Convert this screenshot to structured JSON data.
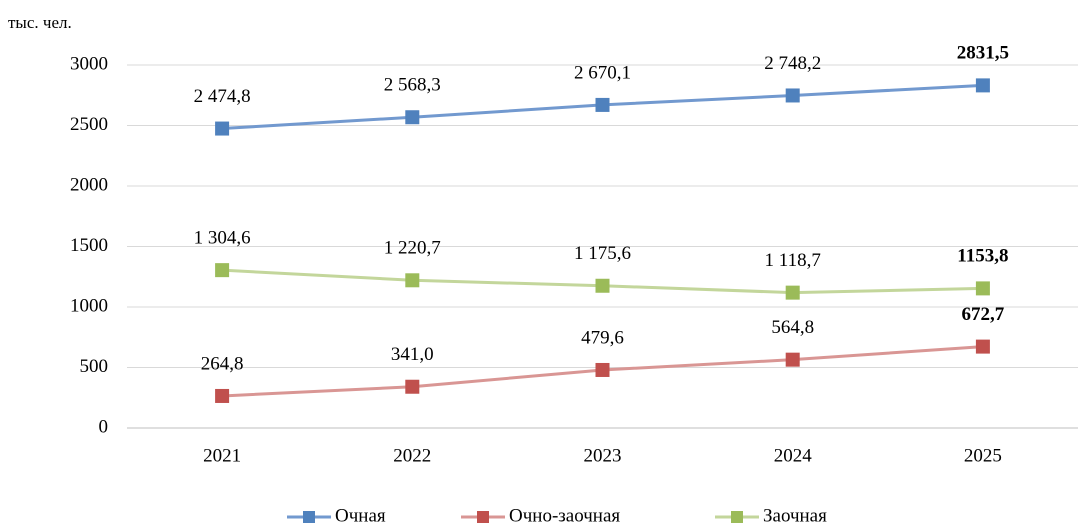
{
  "chart_data": {
    "type": "line",
    "y_axis_label": "тыс. чел.",
    "categories": [
      "2021",
      "2022",
      "2023",
      "2024",
      "2025"
    ],
    "series": [
      {
        "name": "Очная",
        "color": "#4f81bd",
        "line_color": "#7299cf",
        "values": [
          2474.8,
          2568.3,
          2670.1,
          2748.2,
          2831.5
        ],
        "value_labels": [
          "2 474,8",
          "2 568,3",
          "2 670,1",
          "2 748,2",
          "2831,5"
        ]
      },
      {
        "name": "Очно-заочная",
        "color": "#c0504d",
        "line_color": "#d99694",
        "values": [
          264.8,
          341.0,
          479.6,
          564.8,
          672.7
        ],
        "value_labels": [
          "264,8",
          "341,0",
          "479,6",
          "564,8",
          "672,7"
        ]
      },
      {
        "name": "Заочная",
        "color": "#9bbb59",
        "line_color": "#c3d69b",
        "values": [
          1304.6,
          1220.7,
          1175.6,
          1118.7,
          1153.8
        ],
        "value_labels": [
          "1 304,6",
          "1 220,7",
          "1 175,6",
          "1 118,7",
          "1153,8"
        ]
      }
    ],
    "ylim": [
      0,
      3000
    ],
    "yticks": [
      0,
      500,
      1000,
      1500,
      2000,
      2500,
      3000
    ],
    "grid": true,
    "legend": "bottom"
  }
}
